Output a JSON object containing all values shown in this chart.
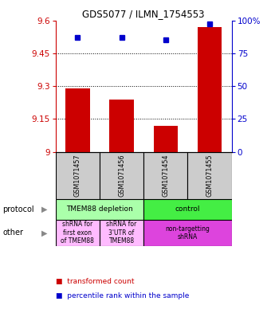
{
  "title": "GDS5077 / ILMN_1754553",
  "samples": [
    "GSM1071457",
    "GSM1071456",
    "GSM1071454",
    "GSM1071455"
  ],
  "red_values": [
    9.29,
    9.24,
    9.12,
    9.57
  ],
  "blue_values": [
    87,
    87,
    85,
    97
  ],
  "ylim_left": [
    9.0,
    9.6
  ],
  "ylim_right": [
    0,
    100
  ],
  "yticks_left": [
    9.0,
    9.15,
    9.3,
    9.45,
    9.6
  ],
  "ytick_labels_left": [
    "9",
    "9.15",
    "9.3",
    "9.45",
    "9.6"
  ],
  "yticks_right": [
    0,
    25,
    50,
    75,
    100
  ],
  "ytick_labels_right": [
    "0",
    "25",
    "50",
    "75",
    "100%"
  ],
  "gridlines": [
    9.15,
    9.3,
    9.45
  ],
  "red_color": "#cc0000",
  "blue_color": "#0000cc",
  "bar_width": 0.55,
  "protocol_row": [
    {
      "label": "TMEM88 depletion",
      "color": "#aaffaa",
      "col_span": [
        0,
        2
      ]
    },
    {
      "label": "control",
      "color": "#44ee44",
      "col_span": [
        2,
        4
      ]
    }
  ],
  "other_row": [
    {
      "label": "shRNA for\nfirst exon\nof TMEM88",
      "color": "#ffbbff",
      "col_span": [
        0,
        1
      ]
    },
    {
      "label": "shRNA for\n3'UTR of\nTMEM88",
      "color": "#ffbbff",
      "col_span": [
        1,
        2
      ]
    },
    {
      "label": "non-targetting\nshRNA",
      "color": "#dd44dd",
      "col_span": [
        2,
        4
      ]
    }
  ],
  "legend_red": "transformed count",
  "legend_blue": "percentile rank within the sample",
  "label_protocol": "protocol",
  "label_other": "other",
  "sample_bg": "#cccccc",
  "fig_bg": "#ffffff"
}
